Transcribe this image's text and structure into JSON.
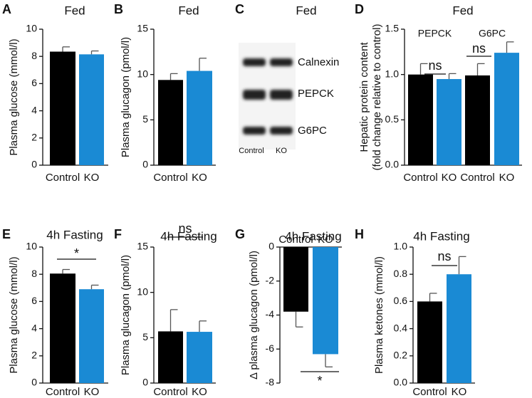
{
  "chart_data": [
    {
      "type": "bar",
      "panel": "A",
      "title": "Fed",
      "ylabel": "Plasma glucose (mmol/l)",
      "categories": [
        "Control",
        "KO"
      ],
      "values": [
        8.35,
        8.15
      ],
      "errors": [
        0.35,
        0.25
      ],
      "colors": [
        "#000000",
        "#1a8ad4"
      ],
      "ylim": [
        0,
        10
      ],
      "yticks": [
        0,
        2,
        4,
        6,
        8,
        10
      ],
      "annotations": []
    },
    {
      "type": "bar",
      "panel": "B",
      "title": "Fed",
      "ylabel": "Plasma glucagon (pmol/l)",
      "categories": [
        "Control",
        "KO"
      ],
      "values": [
        9.4,
        10.4
      ],
      "errors": [
        0.7,
        1.4
      ],
      "colors": [
        "#000000",
        "#1a8ad4"
      ],
      "ylim": [
        0,
        15
      ],
      "yticks": [
        0,
        5,
        10,
        15
      ],
      "annotations": []
    },
    {
      "type": "blot",
      "panel": "C",
      "title": "Fed",
      "bands": [
        "Calnexin",
        "PEPCK",
        "G6PC"
      ],
      "lanes": [
        "Control",
        "KO"
      ]
    },
    {
      "type": "bar",
      "panel": "D",
      "title": "Fed",
      "ylabel": [
        "Hepatic protein content",
        "(fold change relative to control)"
      ],
      "groups": [
        "PEPCK",
        "G6PC"
      ],
      "categories": [
        "Control",
        "KO",
        "Control",
        "KO"
      ],
      "values": [
        1.0,
        0.95,
        0.99,
        1.24
      ],
      "errors": [
        0.12,
        0.06,
        0.13,
        0.12
      ],
      "colors": [
        "#000000",
        "#1a8ad4",
        "#000000",
        "#1a8ad4"
      ],
      "ylim": [
        0,
        1.5
      ],
      "yticks": [
        {
          "value": 0,
          "label": "0.0"
        },
        0.5,
        {
          "value": 1,
          "label": "1.0"
        },
        1.5
      ],
      "annotations": [
        "ns",
        "ns"
      ]
    },
    {
      "type": "bar",
      "panel": "E",
      "title": "4h Fasting",
      "ylabel": "Plasma glucose (mmol/l)",
      "categories": [
        "Control",
        "KO"
      ],
      "values": [
        8.05,
        6.9
      ],
      "errors": [
        0.3,
        0.3
      ],
      "colors": [
        "#000000",
        "#1a8ad4"
      ],
      "ylim": [
        0,
        10
      ],
      "yticks": [
        0,
        2,
        4,
        6,
        8,
        10
      ],
      "annotations": [
        "*"
      ]
    },
    {
      "type": "bar",
      "panel": "F",
      "title": "4h Fasting",
      "ylabel": "Plasma glucagon (pmol/l)",
      "categories": [
        "Control",
        "KO"
      ],
      "values": [
        5.7,
        5.65
      ],
      "errors": [
        2.4,
        1.2
      ],
      "colors": [
        "#000000",
        "#1a8ad4"
      ],
      "ylim": [
        0,
        15
      ],
      "yticks": [
        0,
        5,
        10,
        15
      ],
      "annotations": [
        "ns"
      ]
    },
    {
      "type": "bar",
      "panel": "G",
      "title": "4h Fasting",
      "ylabel": "Δ plasma glucagon (pmol/l)",
      "categories": [
        "Control",
        "KO"
      ],
      "values": [
        -3.8,
        -6.3
      ],
      "errors": [
        0.9,
        0.75
      ],
      "colors": [
        "#000000",
        "#1a8ad4"
      ],
      "ylim": [
        -8,
        0
      ],
      "yticks": [
        0,
        -2,
        -4,
        -6,
        -8
      ],
      "annotations": [
        "*"
      ]
    },
    {
      "type": "bar",
      "panel": "H",
      "title": "4h Fasting",
      "ylabel": "Plasma ketones (mmol/l)",
      "categories": [
        "Control",
        "KO"
      ],
      "values": [
        0.6,
        0.8
      ],
      "errors": [
        0.06,
        0.13
      ],
      "colors": [
        "#000000",
        "#1a8ad4"
      ],
      "ylim": [
        0,
        1
      ],
      "yticks": [
        {
          "value": 0,
          "label": "0.0"
        },
        0.2,
        0.4,
        0.6,
        0.8,
        {
          "value": 1,
          "label": "1.0"
        }
      ],
      "annotations": [
        "ns"
      ]
    }
  ]
}
